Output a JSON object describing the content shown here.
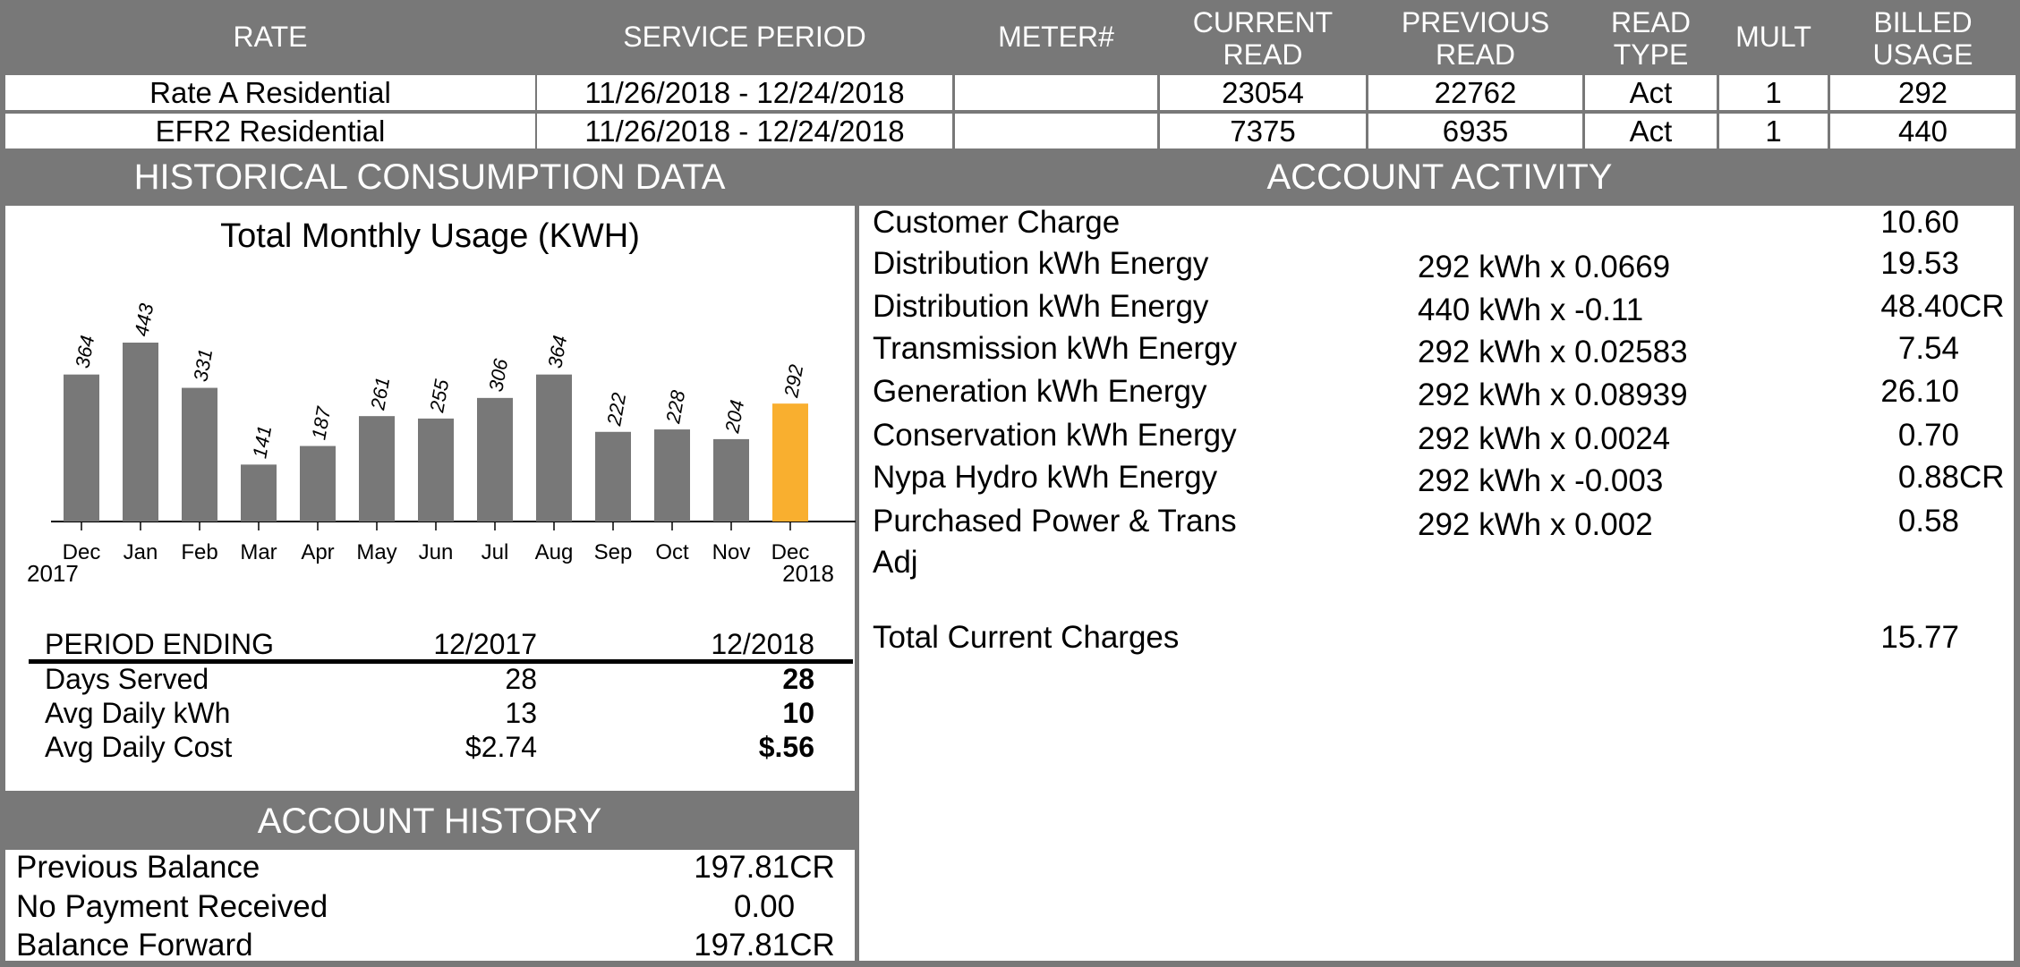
{
  "meter_table": {
    "headers": [
      "RATE",
      "SERVICE PERIOD",
      "METER#",
      "CURRENT\nREAD",
      "PREVIOUS\nREAD",
      "READ\nTYPE",
      "MULT",
      "BILLED\nUSAGE"
    ],
    "rows": [
      [
        "Rate A Residential",
        "11/26/2018 - 12/24/2018",
        "",
        "23054",
        "22762",
        "Act",
        "1",
        "292"
      ],
      [
        "EFR2 Residential",
        "11/26/2018 - 12/24/2018",
        "",
        "7375",
        "6935",
        "Act",
        "1",
        "440"
      ]
    ]
  },
  "sections": {
    "historical": "HISTORICAL CONSUMPTION DATA",
    "activity": "ACCOUNT ACTIVITY",
    "history": "ACCOUNT HISTORY"
  },
  "chart_data": {
    "type": "bar",
    "title": "Total Monthly Usage (KWH)",
    "categories": [
      "Dec",
      "Jan",
      "Feb",
      "Mar",
      "Apr",
      "May",
      "Jun",
      "Jul",
      "Aug",
      "Sep",
      "Oct",
      "Nov",
      "Dec"
    ],
    "values": [
      364,
      443,
      331,
      141,
      187,
      261,
      255,
      306,
      364,
      222,
      228,
      204,
      292
    ],
    "year_labels": {
      "start": "2017",
      "end": "2018"
    },
    "highlight_index": 12,
    "colors": {
      "bar": "#787878",
      "highlight": "#F9AF2F"
    },
    "ylim": [
      0,
      443
    ],
    "grid": false
  },
  "period_table": {
    "headers": [
      "PERIOD ENDING",
      "12/2017",
      "12/2018"
    ],
    "rows": [
      [
        "Days Served",
        "28",
        "28"
      ],
      [
        "Avg Daily kWh",
        "13",
        "10"
      ],
      [
        "Avg Daily Cost",
        "$2.74",
        "$.56"
      ]
    ]
  },
  "activity": {
    "items": [
      {
        "label": "Customer Charge",
        "calc": "",
        "amount": "10.60",
        "suffix": ""
      },
      {
        "label": "Distribution kWh Energy",
        "calc": "292 kWh x 0.0669",
        "amount": "19.53",
        "suffix": ""
      },
      {
        "label": "Distribution kWh Energy",
        "calc": "440 kWh x -0.11",
        "amount": "48.40",
        "suffix": "CR"
      },
      {
        "label": "Transmission kWh Energy",
        "calc": "292 kWh x 0.02583",
        "amount": "7.54",
        "suffix": ""
      },
      {
        "label": "Generation kWh Energy",
        "calc": "292 kWh x 0.08939",
        "amount": "26.10",
        "suffix": ""
      },
      {
        "label": "Conservation kWh Energy",
        "calc": "292 kWh x 0.0024",
        "amount": "0.70",
        "suffix": ""
      },
      {
        "label": "Nypa Hydro kWh Energy",
        "calc": "292 kWh x -0.003",
        "amount": "0.88",
        "suffix": "CR"
      },
      {
        "label": "Purchased Power & Trans",
        "calc": "292 kWh x 0.002",
        "amount": "0.58",
        "suffix": ""
      }
    ],
    "wrap_label": "Adj",
    "total_label": "Total Current Charges",
    "total_amount": "15.77"
  },
  "history": {
    "rows": [
      {
        "label": "Previous Balance",
        "value": "197.81CR"
      },
      {
        "label": "No Payment Received",
        "value": "0.00"
      },
      {
        "label": "Balance Forward",
        "value": "197.81CR"
      }
    ]
  }
}
